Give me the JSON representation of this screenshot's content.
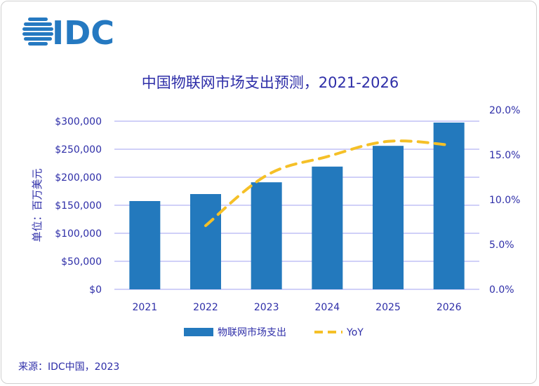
{
  "logo": {
    "text": "IDC",
    "color": "#2579c1"
  },
  "source": "来源：IDC中国，2023",
  "chart_data": {
    "type": "bar+line",
    "title": "中国物联网市场支出预测，2021-2026",
    "ylabel": "单位：百万美元",
    "categories": [
      "2021",
      "2022",
      "2023",
      "2024",
      "2025",
      "2026"
    ],
    "series": [
      {
        "name": "物联网市场支出",
        "type": "bar",
        "axis": "left",
        "color": "#2379bd",
        "values": [
          157500,
          170000,
          191000,
          219000,
          256000,
          297500
        ]
      },
      {
        "name": "YoY",
        "type": "line",
        "style": "dashed-smooth",
        "axis": "right",
        "color": "#f5c027",
        "values": [
          null,
          7.1,
          12.7,
          14.8,
          16.5,
          16.1
        ]
      }
    ],
    "left_axis": {
      "range": [
        0,
        300000
      ],
      "ticks": [
        "$0",
        "$50,000",
        "$100,000",
        "$150,000",
        "$200,000",
        "$250,000",
        "$300,000"
      ]
    },
    "right_axis": {
      "range": [
        0,
        20
      ],
      "ticks": [
        "0.0%",
        "5.0%",
        "10.0%",
        "15.0%",
        "20.0%"
      ]
    },
    "grid": true,
    "legend": "bottom",
    "text_color": "#2e2ea8",
    "grid_color": "#c0c0f5"
  }
}
